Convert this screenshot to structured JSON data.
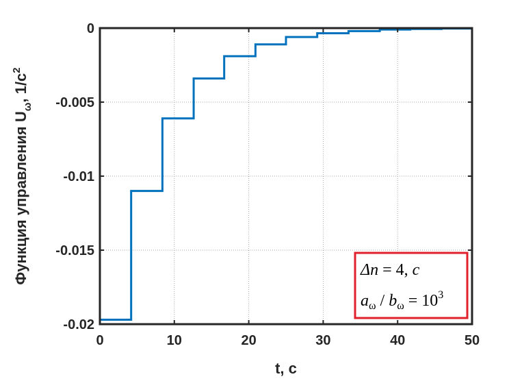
{
  "chart_data": {
    "type": "line",
    "step": true,
    "xlabel": "t, с",
    "ylabel_main": "Функция управления U",
    "ylabel_sub": "ω",
    "ylabel_unit": ", 1/с",
    "ylabel_sup": "2",
    "xlim": [
      0,
      50
    ],
    "ylim": [
      -0.02,
      0
    ],
    "xticks": [
      0,
      10,
      20,
      30,
      40,
      50
    ],
    "xtick_labels": [
      "0",
      "10",
      "20",
      "30",
      "40",
      "50"
    ],
    "yticks": [
      0,
      -0.005,
      -0.01,
      -0.015,
      -0.02
    ],
    "ytick_labels": [
      "0",
      "-0.005",
      "-0.01",
      "-0.015",
      "-0.02"
    ],
    "grid": true,
    "line_color": "#0072BD",
    "box_color": "#E0202A",
    "series": [
      {
        "x": [
          0,
          4.2,
          8.4,
          12.6,
          16.7,
          20.9,
          25.0,
          29.2,
          33.4,
          37.6,
          41.7,
          45.9,
          50
        ],
        "y": [
          -0.0197,
          -0.011,
          -0.0061,
          -0.0034,
          -0.0019,
          -0.0011,
          -0.0006,
          -0.00035,
          -0.0002,
          -0.0001,
          -6e-05,
          -3e-05,
          -2e-05
        ]
      }
    ],
    "annotation": {
      "line1_var": "Δn",
      "line1_eq": " = 4, ",
      "line1_unit": "c",
      "line2_a": "a",
      "line2_a_sub": "ω",
      "line2_div": " / ",
      "line2_b": "b",
      "line2_b_sub": "ω",
      "line2_eq": " = 10",
      "line2_exp": "3"
    }
  }
}
